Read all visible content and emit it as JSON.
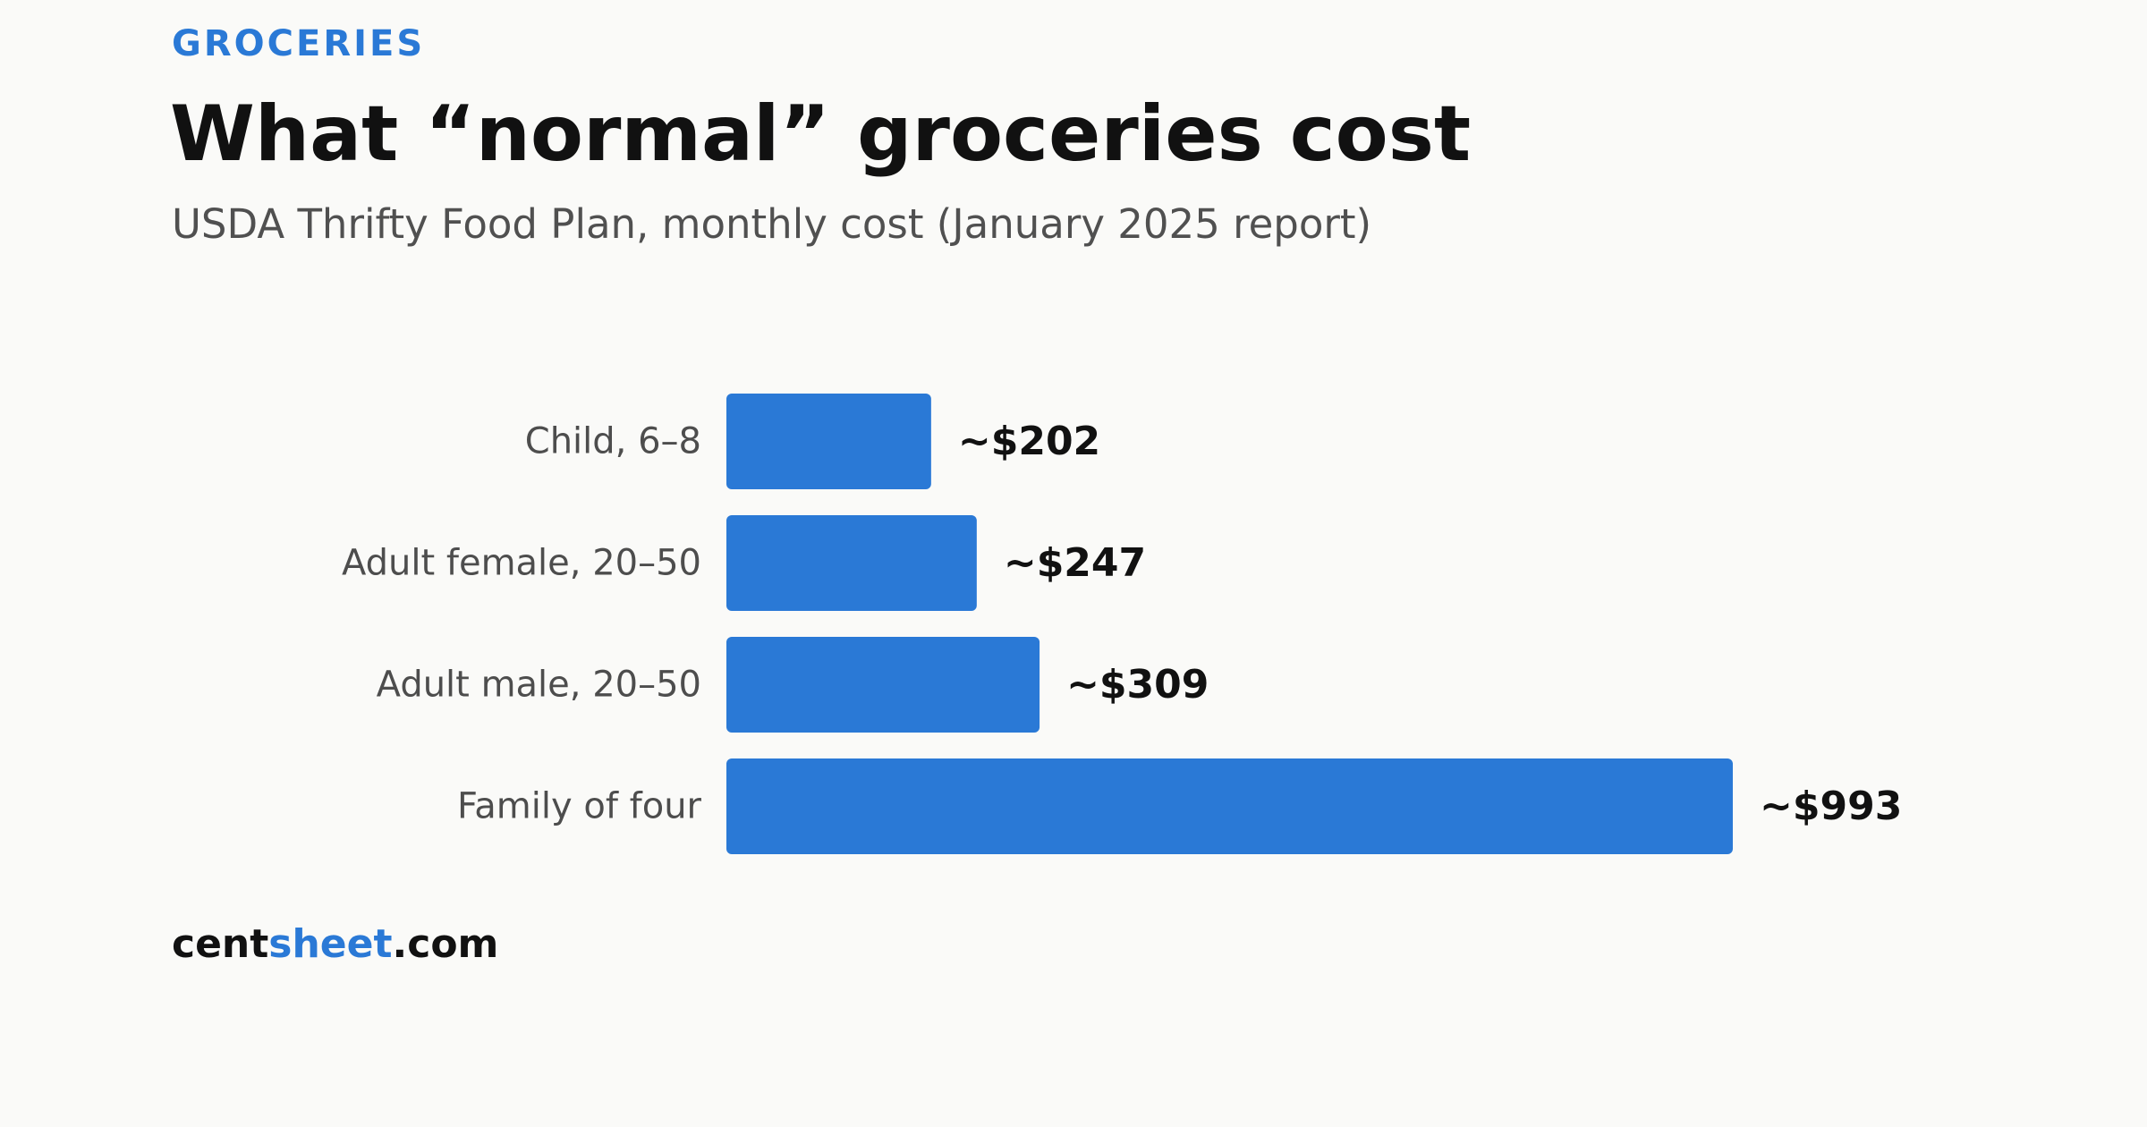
{
  "header": {
    "kicker": "GROCERIES",
    "title": "What “normal” groceries cost",
    "subtitle": "USDA Thrifty Food Plan, monthly cost (January 2025 report)"
  },
  "chart_data": {
    "type": "bar",
    "orientation": "horizontal",
    "categories": [
      "Child, 6–8",
      "Adult female, 20–50",
      "Adult male, 20–50",
      "Family of four"
    ],
    "values": [
      202,
      247,
      309,
      993
    ],
    "value_labels": [
      "~$202",
      "~$247",
      "~$309",
      "~$993"
    ],
    "title": "",
    "xlabel": "",
    "ylabel": "",
    "grid": false,
    "bar_color": "#2a79d6"
  },
  "footer": {
    "brand_part1": "cent",
    "brand_part2": "sheet",
    "brand_part3": ".com"
  },
  "colors": {
    "accent": "#2a79d6",
    "background": "#fafaf8"
  }
}
